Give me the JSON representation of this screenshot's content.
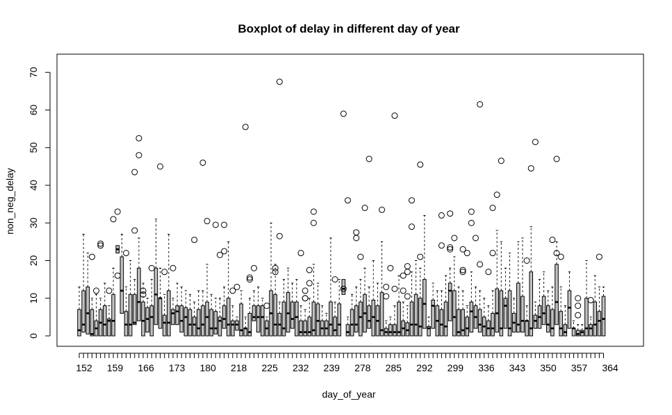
{
  "chart_data": {
    "type": "box",
    "title": "Boxplot of delay in different day of year",
    "xlabel": "day_of_year",
    "ylabel": "non_neg_delay",
    "ylim": [
      -3.5,
      74
    ],
    "yticks": [
      0,
      10,
      20,
      30,
      40,
      50,
      60,
      70
    ],
    "xtick_labels": [
      "152",
      "159",
      "166",
      "173",
      "180",
      "218",
      "225",
      "232",
      "239",
      "278",
      "285",
      "292",
      "299",
      "336",
      "343",
      "350",
      "357",
      "364"
    ],
    "grid": false,
    "legend": "none",
    "box_fill": "#c0c0c0",
    "stroke": "#000000",
    "boxes": [
      {
        "q1": 0,
        "med": 1.5,
        "q3": 7,
        "whisker": 13,
        "outliers": []
      },
      {
        "q1": 1,
        "med": 3,
        "q3": 12,
        "whisker": 27,
        "outliers": []
      },
      {
        "q1": 0.5,
        "med": 6,
        "q3": 13,
        "whisker": 22,
        "outliers": []
      },
      {
        "q1": 0,
        "med": 0.5,
        "q3": 7,
        "whisker": 10,
        "outliers": [
          21
        ]
      },
      {
        "q1": 0,
        "med": 2,
        "q3": 4,
        "whisker": 11,
        "outliers": [
          12
        ]
      },
      {
        "q1": 0,
        "med": 3.5,
        "q3": 7,
        "whisker": 10,
        "outliers": [
          24,
          24.5
        ]
      },
      {
        "q1": 0,
        "med": 3,
        "q3": 8,
        "whisker": 14,
        "outliers": []
      },
      {
        "q1": 0,
        "med": 4,
        "q3": 4.5,
        "whisker": 8,
        "outliers": [
          12
        ]
      },
      {
        "q1": 0,
        "med": 4,
        "q3": 11,
        "whisker": 18,
        "outliers": [
          31
        ]
      },
      {
        "q1": 22,
        "med": 23,
        "q3": 24,
        "whisker": 24,
        "outliers": [
          33,
          16
        ]
      },
      {
        "q1": 6,
        "med": 12,
        "q3": 21,
        "whisker": 27,
        "outliers": []
      },
      {
        "q1": 0,
        "med": 3,
        "q3": 6.5,
        "whisker": 13,
        "outliers": [
          22
        ]
      },
      {
        "q1": 0,
        "med": 3,
        "q3": 11,
        "whisker": 20,
        "outliers": []
      },
      {
        "q1": 3,
        "med": 3.5,
        "q3": 11,
        "whisker": 15,
        "outliers": [
          43.5,
          28
        ]
      },
      {
        "q1": 4,
        "med": 9,
        "q3": 18,
        "whisker": 26,
        "outliers": [
          52.5,
          48
        ]
      },
      {
        "q1": 0,
        "med": 4,
        "q3": 9,
        "whisker": 14,
        "outliers": [
          12,
          11
        ]
      },
      {
        "q1": 1,
        "med": 4.5,
        "q3": 7.5,
        "whisker": 10,
        "outliers": []
      },
      {
        "q1": 0,
        "med": 5,
        "q3": 8,
        "whisker": 15,
        "outliers": [
          18
        ]
      },
      {
        "q1": 3,
        "med": 11,
        "q3": 18,
        "whisker": 31,
        "outliers": []
      },
      {
        "q1": 2,
        "med": 10,
        "q3": 10,
        "whisker": 18,
        "outliers": [
          45
        ]
      },
      {
        "q1": 0,
        "med": 3.5,
        "q3": 5.5,
        "whisker": 11,
        "outliers": [
          17
        ]
      },
      {
        "q1": 0,
        "med": 3.5,
        "q3": 12,
        "whisker": 27,
        "outliers": []
      },
      {
        "q1": 3,
        "med": 6,
        "q3": 7,
        "whisker": 10,
        "outliers": [
          18
        ]
      },
      {
        "q1": 3,
        "med": 6.5,
        "q3": 8,
        "whisker": 14,
        "outliers": []
      },
      {
        "q1": 1,
        "med": 4,
        "q3": 8,
        "whisker": 13,
        "outliers": []
      },
      {
        "q1": 0,
        "med": 5,
        "q3": 7.5,
        "whisker": 12,
        "outliers": []
      },
      {
        "q1": 0,
        "med": 3,
        "q3": 7,
        "whisker": 11,
        "outliers": []
      },
      {
        "q1": 0,
        "med": 3,
        "q3": 5,
        "whisker": 9,
        "outliers": [
          25.5
        ]
      },
      {
        "q1": 0,
        "med": 2,
        "q3": 7,
        "whisker": 12,
        "outliers": []
      },
      {
        "q1": 0,
        "med": 3,
        "q3": 8,
        "whisker": 12,
        "outliers": [
          46
        ]
      },
      {
        "q1": 0,
        "med": 5,
        "q3": 9,
        "whisker": 19,
        "outliers": [
          30.5
        ]
      },
      {
        "q1": 0,
        "med": 2,
        "q3": 7,
        "whisker": 11,
        "outliers": []
      },
      {
        "q1": 0.5,
        "med": 2,
        "q3": 6.5,
        "whisker": 10,
        "outliers": [
          29.5
        ]
      },
      {
        "q1": 0,
        "med": 4,
        "q3": 5,
        "whisker": 10,
        "outliers": [
          21.5
        ]
      },
      {
        "q1": 2,
        "med": 4.5,
        "q3": 8,
        "whisker": 13,
        "outliers": [
          22.5,
          29.5
        ]
      },
      {
        "q1": 0,
        "med": 3,
        "q3": 10,
        "whisker": 25,
        "outliers": []
      },
      {
        "q1": 0,
        "med": 3,
        "q3": 4,
        "whisker": 8,
        "outliers": [
          12
        ]
      },
      {
        "q1": 1.5,
        "med": 3,
        "q3": 4,
        "whisker": 5,
        "outliers": [
          13
        ]
      },
      {
        "q1": 0,
        "med": 1.5,
        "q3": 8.5,
        "whisker": 12,
        "outliers": []
      },
      {
        "q1": 0,
        "med": 2,
        "q3": 2,
        "whisker": 5,
        "outliers": [
          55.5
        ]
      },
      {
        "q1": 0,
        "med": 1,
        "q3": 6,
        "whisker": 10,
        "outliers": [
          15.5,
          15
        ]
      },
      {
        "q1": 4,
        "med": 5,
        "q3": 8,
        "whisker": 12,
        "outliers": [
          18
        ]
      },
      {
        "q1": 1,
        "med": 5,
        "q3": 8,
        "whisker": 13,
        "outliers": []
      },
      {
        "q1": 0,
        "med": 5,
        "q3": 8,
        "whisker": 10,
        "outliers": []
      },
      {
        "q1": 0,
        "med": 2,
        "q3": 4,
        "whisker": 5,
        "outliers": [
          8
        ]
      },
      {
        "q1": 0,
        "med": 6,
        "q3": 12,
        "whisker": 30,
        "outliers": []
      },
      {
        "q1": 0,
        "med": 3,
        "q3": 11,
        "whisker": 19,
        "outliers": [
          18,
          17
        ]
      },
      {
        "q1": 0,
        "med": 3,
        "q3": 6,
        "whisker": 9,
        "outliers": [
          67.5,
          26.5
        ]
      },
      {
        "q1": 0,
        "med": 2,
        "q3": 9,
        "whisker": 15,
        "outliers": []
      },
      {
        "q1": 1,
        "med": 6,
        "q3": 11.5,
        "whisker": 18,
        "outliers": []
      },
      {
        "q1": 2,
        "med": 4.5,
        "q3": 9,
        "whisker": 14,
        "outliers": []
      },
      {
        "q1": 0,
        "med": 5,
        "q3": 9,
        "whisker": 15,
        "outliers": []
      },
      {
        "q1": 0,
        "med": 1,
        "q3": 4,
        "whisker": 8,
        "outliers": [
          22
        ]
      },
      {
        "q1": 0,
        "med": 1,
        "q3": 4,
        "whisker": 7,
        "outliers": [
          12,
          10,
          10
        ]
      },
      {
        "q1": 0,
        "med": 1,
        "q3": 5,
        "whisker": 10,
        "outliers": [
          14,
          17.5
        ]
      },
      {
        "q1": 0,
        "med": 1.5,
        "q3": 9,
        "whisker": 19,
        "outliers": [
          33,
          30
        ]
      },
      {
        "q1": 0,
        "med": 4,
        "q3": 8.5,
        "whisker": 14,
        "outliers": []
      },
      {
        "q1": 0,
        "med": 2,
        "q3": 4,
        "whisker": 8,
        "outliers": []
      },
      {
        "q1": 0,
        "med": 2,
        "q3": 4,
        "whisker": 6,
        "outliers": []
      },
      {
        "q1": 0,
        "med": 3,
        "q3": 9,
        "whisker": 26,
        "outliers": []
      },
      {
        "q1": 0,
        "med": 1.5,
        "q3": 5,
        "whisker": 9,
        "outliers": [
          15
        ]
      },
      {
        "q1": 0,
        "med": 3,
        "q3": 8.5,
        "whisker": 15,
        "outliers": []
      },
      {
        "q1": 11,
        "med": 12.5,
        "q3": 15,
        "whisker": 15,
        "outliers": [
          59,
          12.5
        ]
      },
      {
        "q1": 0,
        "med": 1,
        "q3": 3,
        "whisker": 5,
        "outliers": [
          36
        ]
      },
      {
        "q1": 0,
        "med": 3,
        "q3": 7,
        "whisker": 11,
        "outliers": []
      },
      {
        "q1": 1,
        "med": 3,
        "q3": 8,
        "whisker": 13,
        "outliers": [
          27.5,
          26
        ]
      },
      {
        "q1": 0,
        "med": 5,
        "q3": 9,
        "whisker": 15,
        "outliers": [
          21
        ]
      },
      {
        "q1": 1,
        "med": 6,
        "q3": 11,
        "whisker": 18,
        "outliers": [
          34
        ]
      },
      {
        "q1": 2,
        "med": 4,
        "q3": 8,
        "whisker": 13,
        "outliers": [
          47
        ]
      },
      {
        "q1": 0,
        "med": 5,
        "q3": 9.5,
        "whisker": 20,
        "outliers": []
      },
      {
        "q1": 0,
        "med": 4,
        "q3": 8,
        "whisker": 14,
        "outliers": []
      },
      {
        "q1": 0,
        "med": 1.5,
        "q3": 11.5,
        "whisker": 25,
        "outliers": [
          33.5
        ]
      },
      {
        "q1": 0,
        "med": 1,
        "q3": 2,
        "whisker": 4,
        "outliers": [
          13,
          10.5
        ]
      },
      {
        "q1": 0,
        "med": 1,
        "q3": 3,
        "whisker": 5,
        "outliers": [
          18
        ]
      },
      {
        "q1": 0,
        "med": 1,
        "q3": 3,
        "whisker": 8,
        "outliers": [
          58.5,
          12.5
        ]
      },
      {
        "q1": 0,
        "med": 1,
        "q3": 9,
        "whisker": 16,
        "outliers": []
      },
      {
        "q1": 0,
        "med": 2,
        "q3": 4,
        "whisker": 9,
        "outliers": [
          16,
          12
        ]
      },
      {
        "q1": 0,
        "med": 1.5,
        "q3": 3.5,
        "whisker": 8,
        "outliers": [
          18.5,
          17,
          10.5
        ]
      },
      {
        "q1": 0,
        "med": 3,
        "q3": 9,
        "whisker": 17,
        "outliers": [
          36,
          29
        ]
      },
      {
        "q1": 0,
        "med": 3,
        "q3": 11,
        "whisker": 20,
        "outliers": []
      },
      {
        "q1": 0,
        "med": 2.5,
        "q3": 10,
        "whisker": 18,
        "outliers": [
          45.5,
          21
        ]
      },
      {
        "q1": 2,
        "med": 8.5,
        "q3": 15,
        "whisker": 32,
        "outliers": []
      },
      {
        "q1": 0,
        "med": 2,
        "q3": 2.5,
        "whisker": 5,
        "outliers": []
      },
      {
        "q1": 2,
        "med": 8,
        "q3": 9.5,
        "whisker": 14,
        "outliers": []
      },
      {
        "q1": 0,
        "med": 4,
        "q3": 8,
        "whisker": 12,
        "outliers": []
      },
      {
        "q1": 0,
        "med": 3,
        "q3": 7,
        "whisker": 12,
        "outliers": [
          32,
          24
        ]
      },
      {
        "q1": 0,
        "med": 2.5,
        "q3": 9,
        "whisker": 16,
        "outliers": []
      },
      {
        "q1": 4,
        "med": 12,
        "q3": 14,
        "whisker": 18,
        "outliers": [
          23.5,
          23,
          32.5
        ]
      },
      {
        "q1": 0,
        "med": 5,
        "q3": 12,
        "whisker": 21,
        "outliers": [
          26
        ]
      },
      {
        "q1": 0,
        "med": 1,
        "q3": 7,
        "whisker": 13,
        "outliers": []
      },
      {
        "q1": 0,
        "med": 1.5,
        "q3": 7,
        "whisker": 12,
        "outliers": [
          23,
          17.5,
          17
        ]
      },
      {
        "q1": 0,
        "med": 2,
        "q3": 5,
        "whisker": 8,
        "outliers": [
          22
        ]
      },
      {
        "q1": 1,
        "med": 6.5,
        "q3": 9,
        "whisker": 17,
        "outliers": [
          33,
          30
        ]
      },
      {
        "q1": 2,
        "med": 5,
        "q3": 8,
        "whisker": 13,
        "outliers": [
          26
        ]
      },
      {
        "q1": 1,
        "med": 3,
        "q3": 7,
        "whisker": 12,
        "outliers": [
          61.5,
          19
        ]
      },
      {
        "q1": 0,
        "med": 2.5,
        "q3": 5,
        "whisker": 10,
        "outliers": []
      },
      {
        "q1": 0,
        "med": 2,
        "q3": 4,
        "whisker": 8,
        "outliers": [
          17
        ]
      },
      {
        "q1": 0,
        "med": 2,
        "q3": 6,
        "whisker": 12,
        "outliers": [
          34,
          22
        ]
      },
      {
        "q1": 1,
        "med": 6,
        "q3": 12.5,
        "whisker": 28,
        "outliers": [
          37.5
        ]
      },
      {
        "q1": 0,
        "med": 2,
        "q3": 12,
        "whisker": 25,
        "outliers": [
          46.5
        ]
      },
      {
        "q1": 2,
        "med": 8,
        "q3": 10,
        "whisker": 18,
        "outliers": []
      },
      {
        "q1": 0,
        "med": 2,
        "q3": 12,
        "whisker": 22,
        "outliers": []
      },
      {
        "q1": 1,
        "med": 3.5,
        "q3": 6,
        "whisker": 10,
        "outliers": []
      },
      {
        "q1": 1,
        "med": 3,
        "q3": 14,
        "whisker": 25,
        "outliers": []
      },
      {
        "q1": 1,
        "med": 4,
        "q3": 10.5,
        "whisker": 26,
        "outliers": []
      },
      {
        "q1": 0,
        "med": 4,
        "q3": 4,
        "whisker": 8,
        "outliers": [
          20
        ]
      },
      {
        "q1": 0,
        "med": 2,
        "q3": 17,
        "whisker": 29,
        "outliers": [
          44.5
        ]
      },
      {
        "q1": 2,
        "med": 4,
        "q3": 5.5,
        "whisker": 9,
        "outliers": [
          51.5
        ]
      },
      {
        "q1": 2,
        "med": 5,
        "q3": 8,
        "whisker": 15,
        "outliers": []
      },
      {
        "q1": 3,
        "med": 6,
        "q3": 10.5,
        "whisker": 17,
        "outliers": []
      },
      {
        "q1": 1,
        "med": 3,
        "q3": 8,
        "whisker": 12,
        "outliers": []
      },
      {
        "q1": 0,
        "med": 2,
        "q3": 7,
        "whisker": 13,
        "outliers": [
          25.5
        ]
      },
      {
        "q1": 3,
        "med": 9,
        "q3": 19,
        "whisker": 25,
        "outliers": [
          47,
          22
        ]
      },
      {
        "q1": 0,
        "med": 2,
        "q3": 6.5,
        "whisker": 13,
        "outliers": [
          21
        ]
      },
      {
        "q1": 0,
        "med": 1,
        "q3": 3,
        "whisker": 8,
        "outliers": []
      },
      {
        "q1": 2,
        "med": 7.5,
        "q3": 12,
        "whisker": 17,
        "outliers": []
      },
      {
        "q1": 0,
        "med": 2,
        "q3": 2,
        "whisker": 4,
        "outliers": []
      },
      {
        "q1": 0,
        "med": 0.5,
        "q3": 1.5,
        "whisker": 3,
        "outliers": [
          10,
          8,
          5.5
        ]
      },
      {
        "q1": 0,
        "med": 1,
        "q3": 1.5,
        "whisker": 3,
        "outliers": []
      },
      {
        "q1": 0,
        "med": 2,
        "q3": 10,
        "whisker": 20,
        "outliers": []
      },
      {
        "q1": 0,
        "med": 2,
        "q3": 3,
        "whisker": 5,
        "outliers": [
          9.5
        ]
      },
      {
        "q1": 0,
        "med": 3,
        "q3": 9,
        "whisker": 16,
        "outliers": []
      },
      {
        "q1": 0,
        "med": 4,
        "q3": 6.5,
        "whisker": 13,
        "outliers": [
          21
        ]
      },
      {
        "q1": 0,
        "med": 4.5,
        "q3": 10.5,
        "whisker": 13,
        "outliers": []
      }
    ]
  }
}
